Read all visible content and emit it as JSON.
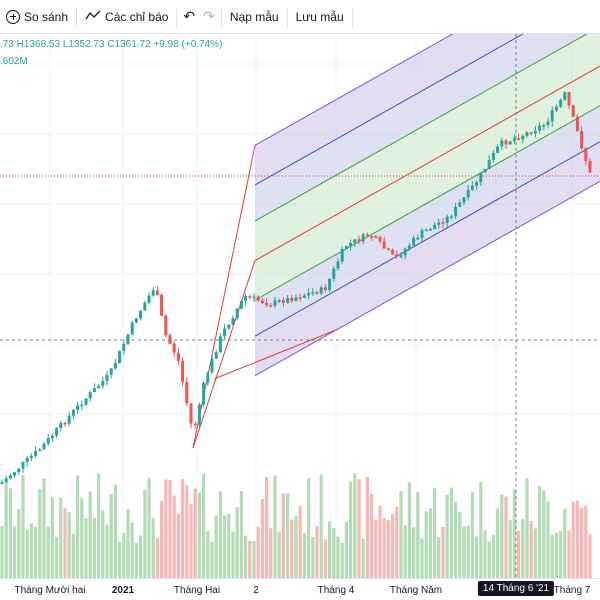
{
  "toolbar": {
    "compare_label": "So sánh",
    "indicators_label": "Các chỉ báo",
    "templates_label": "Nạp mẫu",
    "save_label": "Lưu mẫu",
    "undo_icon": "undo-icon",
    "redo_icon": "redo-icon"
  },
  "legend": {
    "ohlc": ".73  H1368.53  L1352.73  C1361.72  +9.98 (+0.74%)",
    "volume": ".602M"
  },
  "xaxis": {
    "labels": [
      "Tháng Mười hai",
      "2021",
      "Tháng Hai",
      "2",
      "Tháng 4",
      "Tháng Năm",
      "Tháng 7"
    ],
    "crosshair": "14 Tháng 6 '21"
  },
  "colors": {
    "up": "#26a69a",
    "down": "#ef5350",
    "vol_up": "#a5d6a7",
    "vol_down": "#f7a9a8",
    "channel_outer": "#7e57c2",
    "channel_mid": "#3f51b5",
    "channel_inner": "#43a047"
  }
}
